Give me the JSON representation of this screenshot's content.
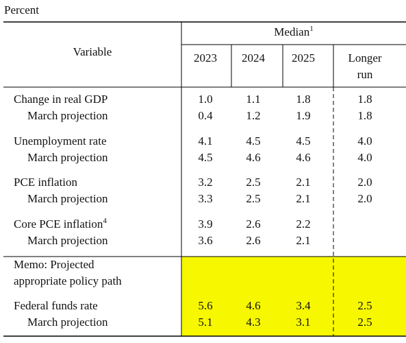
{
  "header": {
    "unit": "Percent",
    "stub": "Variable",
    "group": {
      "label": "Median",
      "note": "1"
    },
    "columns": [
      "2023",
      "2024",
      "2025",
      [
        "Longer",
        "run"
      ]
    ]
  },
  "groups": [
    {
      "rows": [
        {
          "label": "Change in real GDP",
          "values": [
            "1.0",
            "1.1",
            "1.8",
            "1.8"
          ]
        },
        {
          "label": "March projection",
          "values": [
            "0.4",
            "1.2",
            "1.9",
            "1.8"
          ]
        }
      ]
    },
    {
      "rows": [
        {
          "label": "Unemployment rate",
          "values": [
            "4.1",
            "4.5",
            "4.5",
            "4.0"
          ]
        },
        {
          "label": "March projection",
          "values": [
            "4.5",
            "4.6",
            "4.6",
            "4.0"
          ]
        }
      ]
    },
    {
      "rows": [
        {
          "label": "PCE inflation",
          "values": [
            "3.2",
            "2.5",
            "2.1",
            "2.0"
          ]
        },
        {
          "label": "March projection",
          "values": [
            "3.3",
            "2.5",
            "2.1",
            "2.0"
          ]
        }
      ]
    },
    {
      "rows": [
        {
          "label": "Core PCE inflation",
          "note": "4",
          "values": [
            "3.9",
            "2.6",
            "2.2"
          ]
        },
        {
          "label": "March projection",
          "values": [
            "3.6",
            "2.6",
            "2.1"
          ]
        }
      ]
    }
  ],
  "memo": {
    "label": [
      "Memo: Projected",
      "appropriate policy path"
    ],
    "rows": [
      {
        "label": "Federal funds rate",
        "values": [
          "5.6",
          "4.6",
          "3.4",
          "2.5"
        ]
      },
      {
        "label": "March projection",
        "values": [
          "5.1",
          "4.3",
          "3.1",
          "2.5"
        ]
      }
    ]
  }
}
